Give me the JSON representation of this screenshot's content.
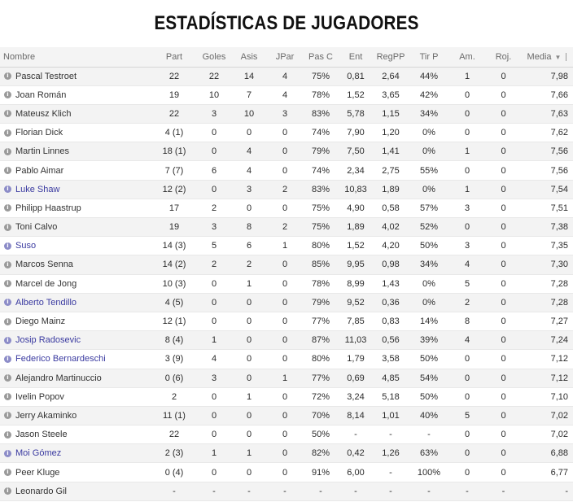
{
  "title": "ESTADÍSTICAS DE JUGADORES",
  "headers": {
    "nombre": "Nombre",
    "part": "Part",
    "goles": "Goles",
    "asis": "Asis",
    "jpar": "JPar",
    "pasc": "Pas C",
    "ent": "Ent",
    "regpp": "RegPP",
    "tirp": "Tir P",
    "am": "Am.",
    "roj": "Roj.",
    "media": "Media"
  },
  "sort_icon": "sort-down-icon",
  "rows": [
    {
      "name": "Pascal Testroet",
      "link": false,
      "part": "22",
      "goles": "22",
      "asis": "14",
      "jpar": "4",
      "pasc": "75%",
      "ent": "0,81",
      "regpp": "2,64",
      "tirp": "44%",
      "am": "1",
      "roj": "0",
      "media": "7,98"
    },
    {
      "name": "Joan Román",
      "link": false,
      "part": "19",
      "goles": "10",
      "asis": "7",
      "jpar": "4",
      "pasc": "78%",
      "ent": "1,52",
      "regpp": "3,65",
      "tirp": "42%",
      "am": "0",
      "roj": "0",
      "media": "7,66"
    },
    {
      "name": "Mateusz Klich",
      "link": false,
      "part": "22",
      "goles": "3",
      "asis": "10",
      "jpar": "3",
      "pasc": "83%",
      "ent": "5,78",
      "regpp": "1,15",
      "tirp": "34%",
      "am": "0",
      "roj": "0",
      "media": "7,63"
    },
    {
      "name": "Florian Dick",
      "link": false,
      "part": "4 (1)",
      "goles": "0",
      "asis": "0",
      "jpar": "0",
      "pasc": "74%",
      "ent": "7,90",
      "regpp": "1,20",
      "tirp": "0%",
      "am": "0",
      "roj": "0",
      "media": "7,62"
    },
    {
      "name": "Martin Linnes",
      "link": false,
      "part": "18 (1)",
      "goles": "0",
      "asis": "4",
      "jpar": "0",
      "pasc": "79%",
      "ent": "7,50",
      "regpp": "1,41",
      "tirp": "0%",
      "am": "1",
      "roj": "0",
      "media": "7,56"
    },
    {
      "name": "Pablo Aimar",
      "link": false,
      "part": "7 (7)",
      "goles": "6",
      "asis": "4",
      "jpar": "0",
      "pasc": "74%",
      "ent": "2,34",
      "regpp": "2,75",
      "tirp": "55%",
      "am": "0",
      "roj": "0",
      "media": "7,56"
    },
    {
      "name": "Luke Shaw",
      "link": true,
      "part": "12 (2)",
      "goles": "0",
      "asis": "3",
      "jpar": "2",
      "pasc": "83%",
      "ent": "10,83",
      "regpp": "1,89",
      "tirp": "0%",
      "am": "1",
      "roj": "0",
      "media": "7,54"
    },
    {
      "name": "Philipp Haastrup",
      "link": false,
      "part": "17",
      "goles": "2",
      "asis": "0",
      "jpar": "0",
      "pasc": "75%",
      "ent": "4,90",
      "regpp": "0,58",
      "tirp": "57%",
      "am": "3",
      "roj": "0",
      "media": "7,51"
    },
    {
      "name": "Toni Calvo",
      "link": false,
      "part": "19",
      "goles": "3",
      "asis": "8",
      "jpar": "2",
      "pasc": "75%",
      "ent": "1,89",
      "regpp": "4,02",
      "tirp": "52%",
      "am": "0",
      "roj": "0",
      "media": "7,38"
    },
    {
      "name": "Suso",
      "link": true,
      "part": "14 (3)",
      "goles": "5",
      "asis": "6",
      "jpar": "1",
      "pasc": "80%",
      "ent": "1,52",
      "regpp": "4,20",
      "tirp": "50%",
      "am": "3",
      "roj": "0",
      "media": "7,35"
    },
    {
      "name": "Marcos Senna",
      "link": false,
      "part": "14 (2)",
      "goles": "2",
      "asis": "2",
      "jpar": "0",
      "pasc": "85%",
      "ent": "9,95",
      "regpp": "0,98",
      "tirp": "34%",
      "am": "4",
      "roj": "0",
      "media": "7,30"
    },
    {
      "name": "Marcel de Jong",
      "link": false,
      "part": "10 (3)",
      "goles": "0",
      "asis": "1",
      "jpar": "0",
      "pasc": "78%",
      "ent": "8,99",
      "regpp": "1,43",
      "tirp": "0%",
      "am": "5",
      "roj": "0",
      "media": "7,28"
    },
    {
      "name": "Alberto Tendillo",
      "link": true,
      "part": "4 (5)",
      "goles": "0",
      "asis": "0",
      "jpar": "0",
      "pasc": "79%",
      "ent": "9,52",
      "regpp": "0,36",
      "tirp": "0%",
      "am": "2",
      "roj": "0",
      "media": "7,28"
    },
    {
      "name": "Diego Mainz",
      "link": false,
      "part": "12 (1)",
      "goles": "0",
      "asis": "0",
      "jpar": "0",
      "pasc": "77%",
      "ent": "7,85",
      "regpp": "0,83",
      "tirp": "14%",
      "am": "8",
      "roj": "0",
      "media": "7,27"
    },
    {
      "name": "Josip Radosevic",
      "link": true,
      "part": "8 (4)",
      "goles": "1",
      "asis": "0",
      "jpar": "0",
      "pasc": "87%",
      "ent": "11,03",
      "regpp": "0,56",
      "tirp": "39%",
      "am": "4",
      "roj": "0",
      "media": "7,24"
    },
    {
      "name": "Federico Bernardeschi",
      "link": true,
      "part": "3 (9)",
      "goles": "4",
      "asis": "0",
      "jpar": "0",
      "pasc": "80%",
      "ent": "1,79",
      "regpp": "3,58",
      "tirp": "50%",
      "am": "0",
      "roj": "0",
      "media": "7,12"
    },
    {
      "name": "Alejandro Martinuccio",
      "link": false,
      "part": "0 (6)",
      "goles": "3",
      "asis": "0",
      "jpar": "1",
      "pasc": "77%",
      "ent": "0,69",
      "regpp": "4,85",
      "tirp": "54%",
      "am": "0",
      "roj": "0",
      "media": "7,12"
    },
    {
      "name": "Ivelin Popov",
      "link": false,
      "part": "2",
      "goles": "0",
      "asis": "1",
      "jpar": "0",
      "pasc": "72%",
      "ent": "3,24",
      "regpp": "5,18",
      "tirp": "50%",
      "am": "0",
      "roj": "0",
      "media": "7,10"
    },
    {
      "name": "Jerry Akaminko",
      "link": false,
      "part": "11 (1)",
      "goles": "0",
      "asis": "0",
      "jpar": "0",
      "pasc": "70%",
      "ent": "8,14",
      "regpp": "1,01",
      "tirp": "40%",
      "am": "5",
      "roj": "0",
      "media": "7,02"
    },
    {
      "name": "Jason Steele",
      "link": false,
      "part": "22",
      "goles": "0",
      "asis": "0",
      "jpar": "0",
      "pasc": "50%",
      "ent": "-",
      "regpp": "-",
      "tirp": "-",
      "am": "0",
      "roj": "0",
      "media": "7,02"
    },
    {
      "name": "Moi Gómez",
      "link": true,
      "part": "2 (3)",
      "goles": "1",
      "asis": "1",
      "jpar": "0",
      "pasc": "82%",
      "ent": "0,42",
      "regpp": "1,26",
      "tirp": "63%",
      "am": "0",
      "roj": "0",
      "media": "6,88"
    },
    {
      "name": "Peer Kluge",
      "link": false,
      "part": "0 (4)",
      "goles": "0",
      "asis": "0",
      "jpar": "0",
      "pasc": "91%",
      "ent": "6,00",
      "regpp": "-",
      "tirp": "100%",
      "am": "0",
      "roj": "0",
      "media": "6,77"
    },
    {
      "name": "Leonardo Gil",
      "link": false,
      "part": "-",
      "goles": "-",
      "asis": "-",
      "jpar": "-",
      "pasc": "-",
      "ent": "-",
      "regpp": "-",
      "tirp": "-",
      "am": "-",
      "roj": "-",
      "media": "-"
    }
  ]
}
